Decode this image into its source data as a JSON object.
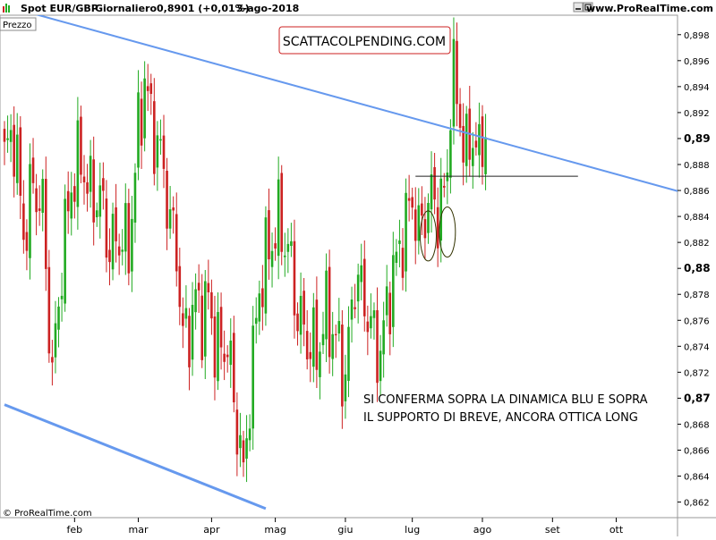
{
  "header": {
    "symbol": "Spot EUR/GBP",
    "timeframe": "Giornaliero",
    "quote": "0,8901 (+0,01%)",
    "date": "3-ago-2018",
    "site": "www.ProRealTime.com"
  },
  "panel_label": "Prezzo",
  "watermark_box": "SCATTACOLPENDING.COM",
  "annotation": [
    "SI CONFERMA SOPRA LA DINAMICA BLU E SOPRA",
    "IL SUPPORTO DI BREVE, ANCORA OTTICA LONG"
  ],
  "copyright": "© ProRealTime.com",
  "colors": {
    "up": "#22aa22",
    "down": "#cc2222",
    "trend": "#6699ee",
    "support": "#222222",
    "box": "#cc2222",
    "circle": "#333300"
  },
  "icons": {
    "app": "chart-icon",
    "window": [
      "minimize-icon",
      "maximize-icon",
      "close-icon"
    ]
  },
  "chart_data": {
    "type": "candlestick",
    "ylim": [
      0.8608,
      0.8995
    ],
    "y_ticks": [
      {
        "v": 0.898,
        "l": "0,898"
      },
      {
        "v": 0.896,
        "l": "0,896"
      },
      {
        "v": 0.894,
        "l": "0,894"
      },
      {
        "v": 0.892,
        "l": "0,892"
      },
      {
        "v": 0.89,
        "l": "0,89",
        "bold": true
      },
      {
        "v": 0.888,
        "l": "0,888"
      },
      {
        "v": 0.886,
        "l": "0,886"
      },
      {
        "v": 0.884,
        "l": "0,884"
      },
      {
        "v": 0.882,
        "l": "0,882"
      },
      {
        "v": 0.88,
        "l": "0,88",
        "bold": true
      },
      {
        "v": 0.878,
        "l": "0,878"
      },
      {
        "v": 0.876,
        "l": "0,876"
      },
      {
        "v": 0.874,
        "l": "0,874"
      },
      {
        "v": 0.872,
        "l": "0,872"
      },
      {
        "v": 0.87,
        "l": "0,87",
        "bold": true
      },
      {
        "v": 0.868,
        "l": "0,868"
      },
      {
        "v": 0.866,
        "l": "0,866"
      },
      {
        "v": 0.864,
        "l": "0,864"
      },
      {
        "v": 0.862,
        "l": "0,862"
      }
    ],
    "x_ticks": [
      {
        "i": 22,
        "l": "feb"
      },
      {
        "i": 42,
        "l": "mar"
      },
      {
        "i": 65,
        "l": "apr"
      },
      {
        "i": 85,
        "l": "mag"
      },
      {
        "i": 107,
        "l": "giu"
      },
      {
        "i": 128,
        "l": "lug"
      },
      {
        "i": 150,
        "l": "ago"
      },
      {
        "i": 172,
        "l": "set"
      },
      {
        "i": 192,
        "l": "ott"
      }
    ],
    "anchors": [
      [
        0,
        0.8885
      ],
      [
        3,
        0.8905
      ],
      [
        6,
        0.8825
      ],
      [
        9,
        0.8865
      ],
      [
        12,
        0.8845
      ],
      [
        15,
        0.8715
      ],
      [
        18,
        0.8805
      ],
      [
        21,
        0.8865
      ],
      [
        24,
        0.8885
      ],
      [
        27,
        0.8855
      ],
      [
        30,
        0.8855
      ],
      [
        33,
        0.8815
      ],
      [
        36,
        0.8825
      ],
      [
        39,
        0.8815
      ],
      [
        42,
        0.8905
      ],
      [
        44,
        0.8945
      ],
      [
        46,
        0.8915
      ],
      [
        48,
        0.8895
      ],
      [
        50,
        0.8875
      ],
      [
        52,
        0.8835
      ],
      [
        54,
        0.8815
      ],
      [
        56,
        0.8745
      ],
      [
        58,
        0.8755
      ],
      [
        60,
        0.8775
      ],
      [
        62,
        0.8765
      ],
      [
        64,
        0.8775
      ],
      [
        66,
        0.8745
      ],
      [
        68,
        0.8735
      ],
      [
        70,
        0.8745
      ],
      [
        72,
        0.8695
      ],
      [
        74,
        0.8665
      ],
      [
        75,
        0.8635
      ],
      [
        77,
        0.8705
      ],
      [
        80,
        0.8785
      ],
      [
        83,
        0.8815
      ],
      [
        86,
        0.8835
      ],
      [
        89,
        0.8815
      ],
      [
        92,
        0.8765
      ],
      [
        95,
        0.8745
      ],
      [
        98,
        0.8735
      ],
      [
        101,
        0.8765
      ],
      [
        104,
        0.8745
      ],
      [
        107,
        0.8715
      ],
      [
        110,
        0.8795
      ],
      [
        113,
        0.8775
      ],
      [
        116,
        0.8745
      ],
      [
        118,
        0.8735
      ],
      [
        121,
        0.8785
      ],
      [
        124,
        0.8815
      ],
      [
        126,
        0.8835
      ],
      [
        128,
        0.8855
      ],
      [
        130,
        0.8825
      ],
      [
        132,
        0.8845
      ],
      [
        134,
        0.8855
      ],
      [
        136,
        0.8845
      ],
      [
        138,
        0.8855
      ],
      [
        139,
        0.8875
      ],
      [
        140,
        0.8935
      ],
      [
        141,
        0.8945
      ],
      [
        143,
        0.8915
      ],
      [
        145,
        0.8885
      ],
      [
        147,
        0.8905
      ],
      [
        149,
        0.8885
      ],
      [
        151,
        0.8901
      ]
    ],
    "trendline_upper": [
      {
        "i": -4,
        "v": 0.9005
      },
      {
        "i": 215,
        "v": 0.8857
      }
    ],
    "trendline_lower": [
      {
        "i": 0,
        "v": 0.8695
      },
      {
        "i": 82,
        "v": 0.8615
      }
    ],
    "support": {
      "i0": 129,
      "i1": 180,
      "v": 0.8871
    },
    "circles": [
      {
        "i": 133,
        "v": 0.8825
      },
      {
        "i": 139,
        "v": 0.8828
      }
    ]
  }
}
